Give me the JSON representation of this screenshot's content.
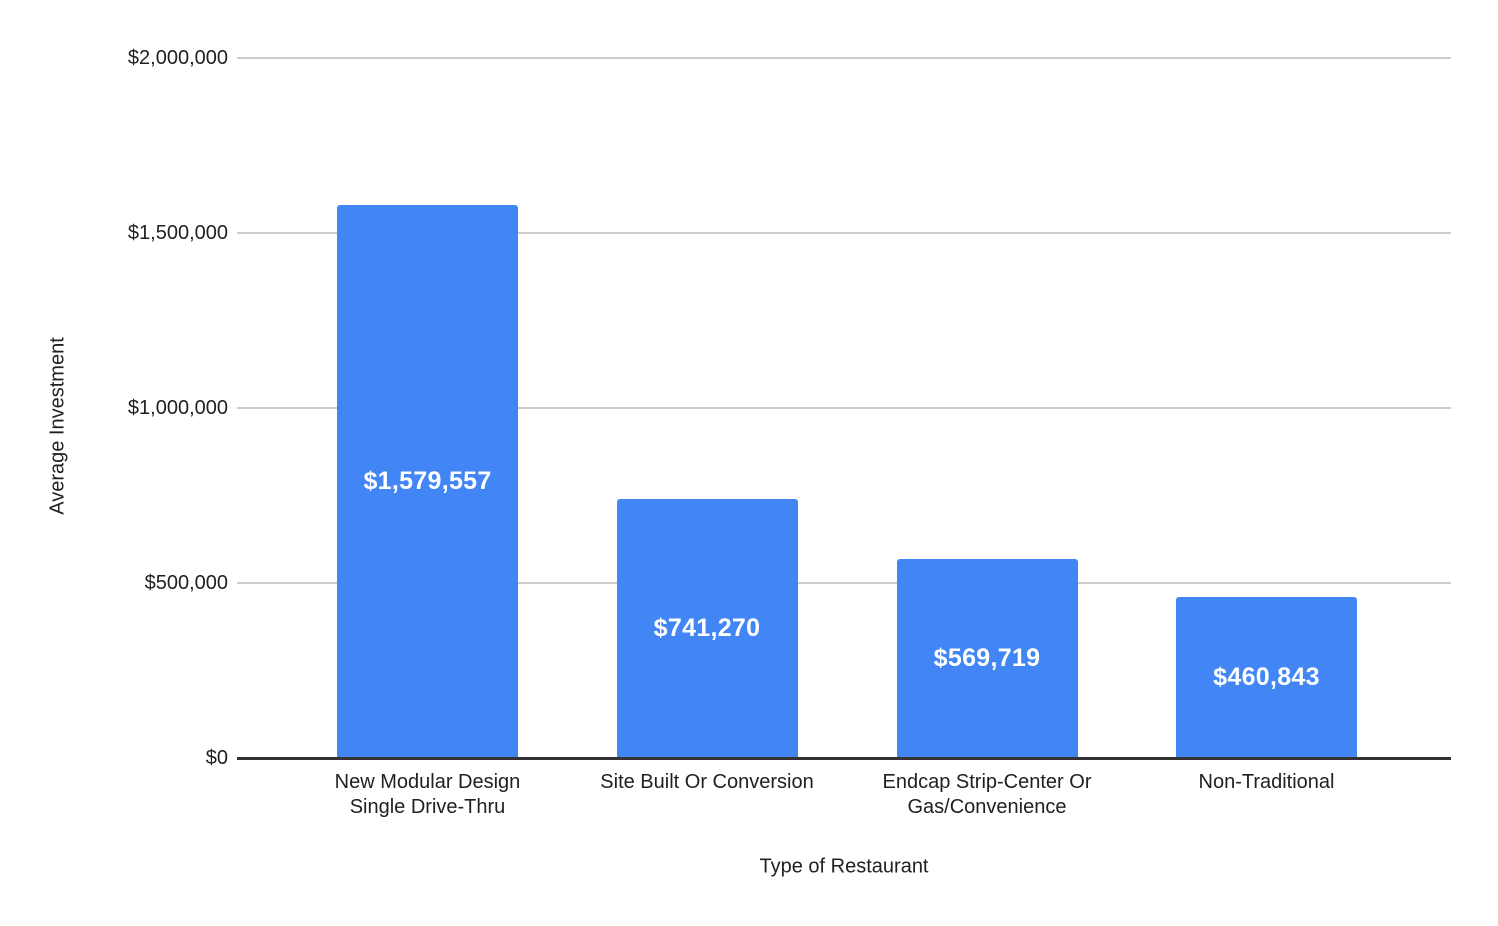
{
  "chart_data": {
    "type": "bar",
    "title": "",
    "categories": [
      "New Modular Design Single Drive-Thru",
      "Site Built Or Conversion",
      "Endcap Strip-Center Or Gas/Convenience",
      "Non-Traditional"
    ],
    "category_lines": [
      [
        "New Modular Design",
        "Single Drive-Thru"
      ],
      [
        "Site Built Or Conversion"
      ],
      [
        "Endcap Strip-Center Or",
        "Gas/Convenience"
      ],
      [
        "Non-Traditional"
      ]
    ],
    "values": [
      1579557,
      741270,
      569719,
      460843
    ],
    "bar_labels": [
      "$1,579,557",
      "$741,270",
      "$569,719",
      "$460,843"
    ],
    "xlabel": "Type of Restaurant",
    "ylabel": "Average Investment",
    "ylim": [
      0,
      2000000
    ],
    "yticks": [
      0,
      500000,
      1000000,
      1500000,
      2000000
    ],
    "ytick_labels": [
      "$0",
      "$500,000",
      "$1,000,000",
      "$1,500,000",
      "$2,000,000"
    ],
    "grid": true,
    "legend_position": "none",
    "colors": {
      "bar": "#4285f4",
      "bar_label": "#ffffff",
      "gridline": "#cccccc",
      "baseline": "#333333",
      "text": "#212121",
      "background": "#ffffff"
    }
  }
}
